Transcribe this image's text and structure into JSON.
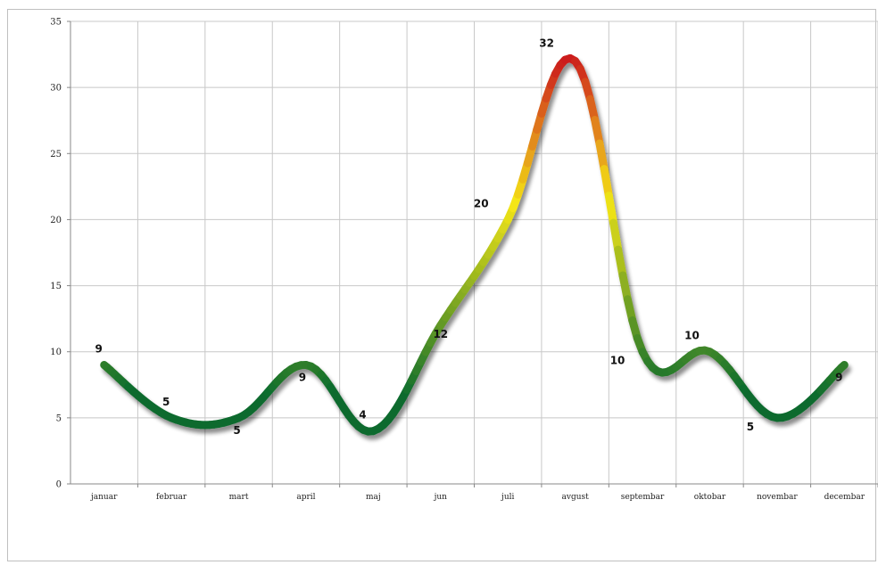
{
  "chart_data": {
    "type": "line",
    "title": "",
    "xlabel": "",
    "ylabel": "",
    "ylim": [
      0,
      35
    ],
    "yticks": [
      0,
      5,
      10,
      15,
      20,
      25,
      30,
      35
    ],
    "grid": true,
    "legend": "none",
    "smooth": true,
    "categories": [
      "januar",
      "februar",
      "mart",
      "april",
      "maj",
      "jun",
      "juli",
      "avgust",
      "septembar",
      "oktobar",
      "novembar",
      "decembar"
    ],
    "series": [
      {
        "values": [
          9,
          5,
          5,
          9,
          4,
          12,
          20,
          32,
          10,
          10,
          5,
          9
        ],
        "color_scale": {
          "low": "#0b6b2e",
          "mid": "#f5e617",
          "high": "#cc1f1f"
        }
      }
    ]
  }
}
